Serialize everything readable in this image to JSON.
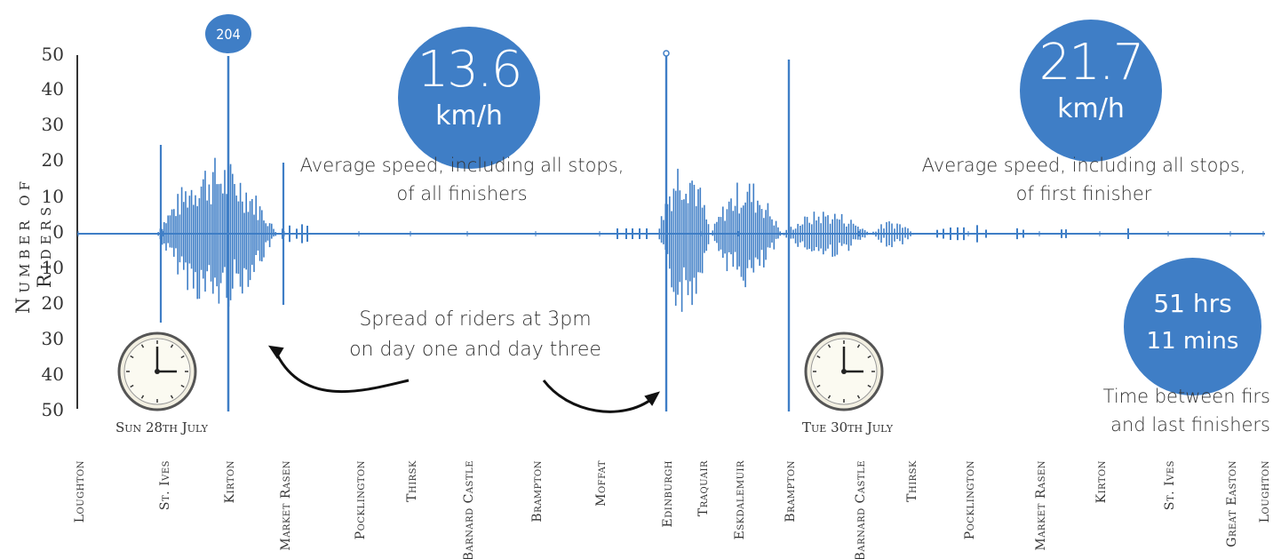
{
  "chart_data": {
    "type": "bar",
    "ylabel": "Number of Riders",
    "y_ticks_top": [
      "50",
      "40",
      "30",
      "20",
      "10",
      "0"
    ],
    "y_ticks_bottom": [
      "10",
      "20",
      "30",
      "40",
      "50"
    ],
    "ylim": [
      -50,
      50
    ],
    "locations": [
      "Loughton",
      "St. Ives",
      "Kirton",
      "Market Rasen",
      "Pocklington",
      "Thirsk",
      "Barnard Castle",
      "Brampton",
      "Moffat",
      "Edinburgh",
      "Traquair",
      "Eskdalemuir",
      "Brampton",
      "Barnard Castle",
      "Thirsk",
      "Pocklington",
      "Market Rasen",
      "Kirton",
      "St. Ives",
      "Great Easton",
      "Loughton"
    ],
    "peaks": [
      {
        "location": "Kirton",
        "value": 204
      },
      {
        "location": "Edinburgh",
        "value": 50
      },
      {
        "location": "Brampton",
        "value": 49
      }
    ],
    "spikes": [
      {
        "location": "St. Ives",
        "above": 25,
        "below": 25
      },
      {
        "location": "Kirton",
        "above": 50,
        "below": 50
      },
      {
        "location": "Market Rasen",
        "above": 20,
        "below": 20
      }
    ],
    "peak_label": "204",
    "colors": {
      "bars": "#3f7ec6",
      "bubble": "#3f7ec6"
    }
  },
  "stats": {
    "avg_all_value": "13.6",
    "avg_all_unit": "km/h",
    "avg_all_caption_1": "Average speed, including all stops,",
    "avg_all_caption_2": "of all finishers",
    "avg_first_value": "21.7",
    "avg_first_unit": "km/h",
    "avg_first_caption_1": "Average speed, including all stops,",
    "avg_first_caption_2": "of first finisher",
    "spread_hours": "51 hrs",
    "spread_mins": "11 mins",
    "spread_caption_1": "Time between firs",
    "spread_caption_2": "and last finishers"
  },
  "annotation": {
    "line1": "Spread of riders at 3pm",
    "line2": "on day one and day three"
  },
  "dates": {
    "day1": "Sun 28th July",
    "day3": "Tue 30th July"
  }
}
